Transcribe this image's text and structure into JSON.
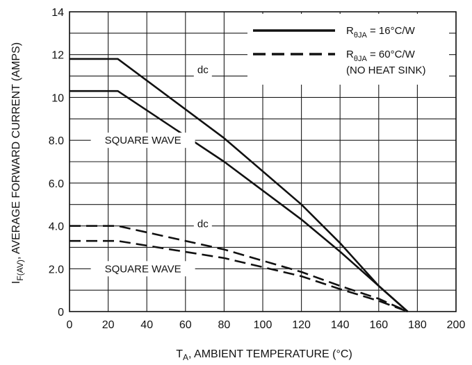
{
  "chart_data": {
    "type": "line",
    "x_axis": {
      "label_main": "T",
      "label_sub": "A",
      "label_rest": ", AMBIENT TEMPERATURE (°C)",
      "range": [
        0,
        200
      ],
      "ticks": [
        0,
        20,
        40,
        60,
        80,
        100,
        120,
        140,
        160,
        180,
        200
      ],
      "tick_labels": [
        "0",
        "20",
        "40",
        "60",
        "80",
        "100",
        "120",
        "140",
        "160",
        "180",
        "200"
      ]
    },
    "y_axis": {
      "label_main": "I",
      "label_sub": "F(AV)",
      "label_rest": ", AVERAGE FORWARD CURRENT (AMPS)",
      "range": [
        0,
        14
      ],
      "ticks": [
        0,
        2,
        4,
        6,
        8,
        10,
        12,
        14
      ],
      "tick_labels": [
        "0",
        "2.0",
        "4.0",
        "6.0",
        "8.0",
        "10",
        "12",
        "14"
      ],
      "minor_gridlines": [
        1,
        3,
        5,
        7,
        9,
        11,
        13
      ]
    },
    "grid": true,
    "legend": {
      "placement": "top-right",
      "entries": [
        {
          "style": "solid",
          "label_main": "R",
          "label_sub": "θJA",
          "label_rest": " = 16°C/W",
          "note": ""
        },
        {
          "style": "dashed",
          "label_main": "R",
          "label_sub": "θJA",
          "label_rest": " = 60°C/W",
          "note": "(NO HEAT SINK)"
        }
      ]
    },
    "series": [
      {
        "style": "solid",
        "annotation": "dc",
        "x": [
          0,
          25,
          80,
          120,
          140,
          160,
          175
        ],
        "y": [
          11.8,
          11.8,
          8.1,
          5.0,
          3.2,
          1.2,
          0
        ]
      },
      {
        "style": "solid",
        "annotation": "SQUARE WAVE",
        "x": [
          0,
          25,
          80,
          120,
          140,
          160,
          175
        ],
        "y": [
          10.3,
          10.3,
          7.0,
          4.3,
          2.8,
          1.2,
          0
        ]
      },
      {
        "style": "dashed",
        "annotation": "dc",
        "x": [
          0,
          25,
          80,
          120,
          140,
          160,
          175
        ],
        "y": [
          4.0,
          4.0,
          2.9,
          1.85,
          1.2,
          0.6,
          0
        ]
      },
      {
        "style": "dashed",
        "annotation": "SQUARE WAVE",
        "x": [
          0,
          25,
          80,
          120,
          140,
          160,
          175
        ],
        "y": [
          3.3,
          3.3,
          2.5,
          1.65,
          1.05,
          0.5,
          0
        ]
      }
    ],
    "annotations": [
      {
        "text": "dc",
        "series_index": 0
      },
      {
        "text": "SQUARE WAVE",
        "series_index": 1
      },
      {
        "text": "dc",
        "series_index": 2
      },
      {
        "text": "SQUARE WAVE",
        "series_index": 3
      }
    ]
  }
}
